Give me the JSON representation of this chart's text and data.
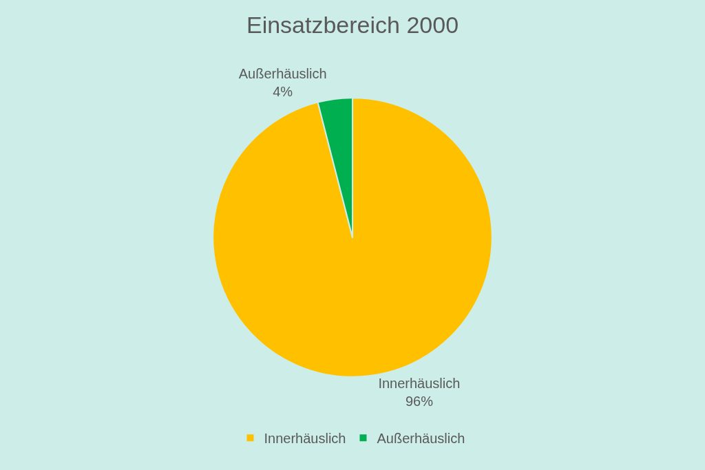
{
  "chart_data": {
    "type": "pie",
    "title": "Einsatzbereich 2000",
    "categories": [
      "Innerhäuslich",
      "Außerhäuslich"
    ],
    "values": [
      96,
      4
    ],
    "colors": [
      "#ffc000",
      "#00b050"
    ],
    "value_labels": [
      "96%",
      "4%"
    ],
    "legend": "bottom"
  }
}
